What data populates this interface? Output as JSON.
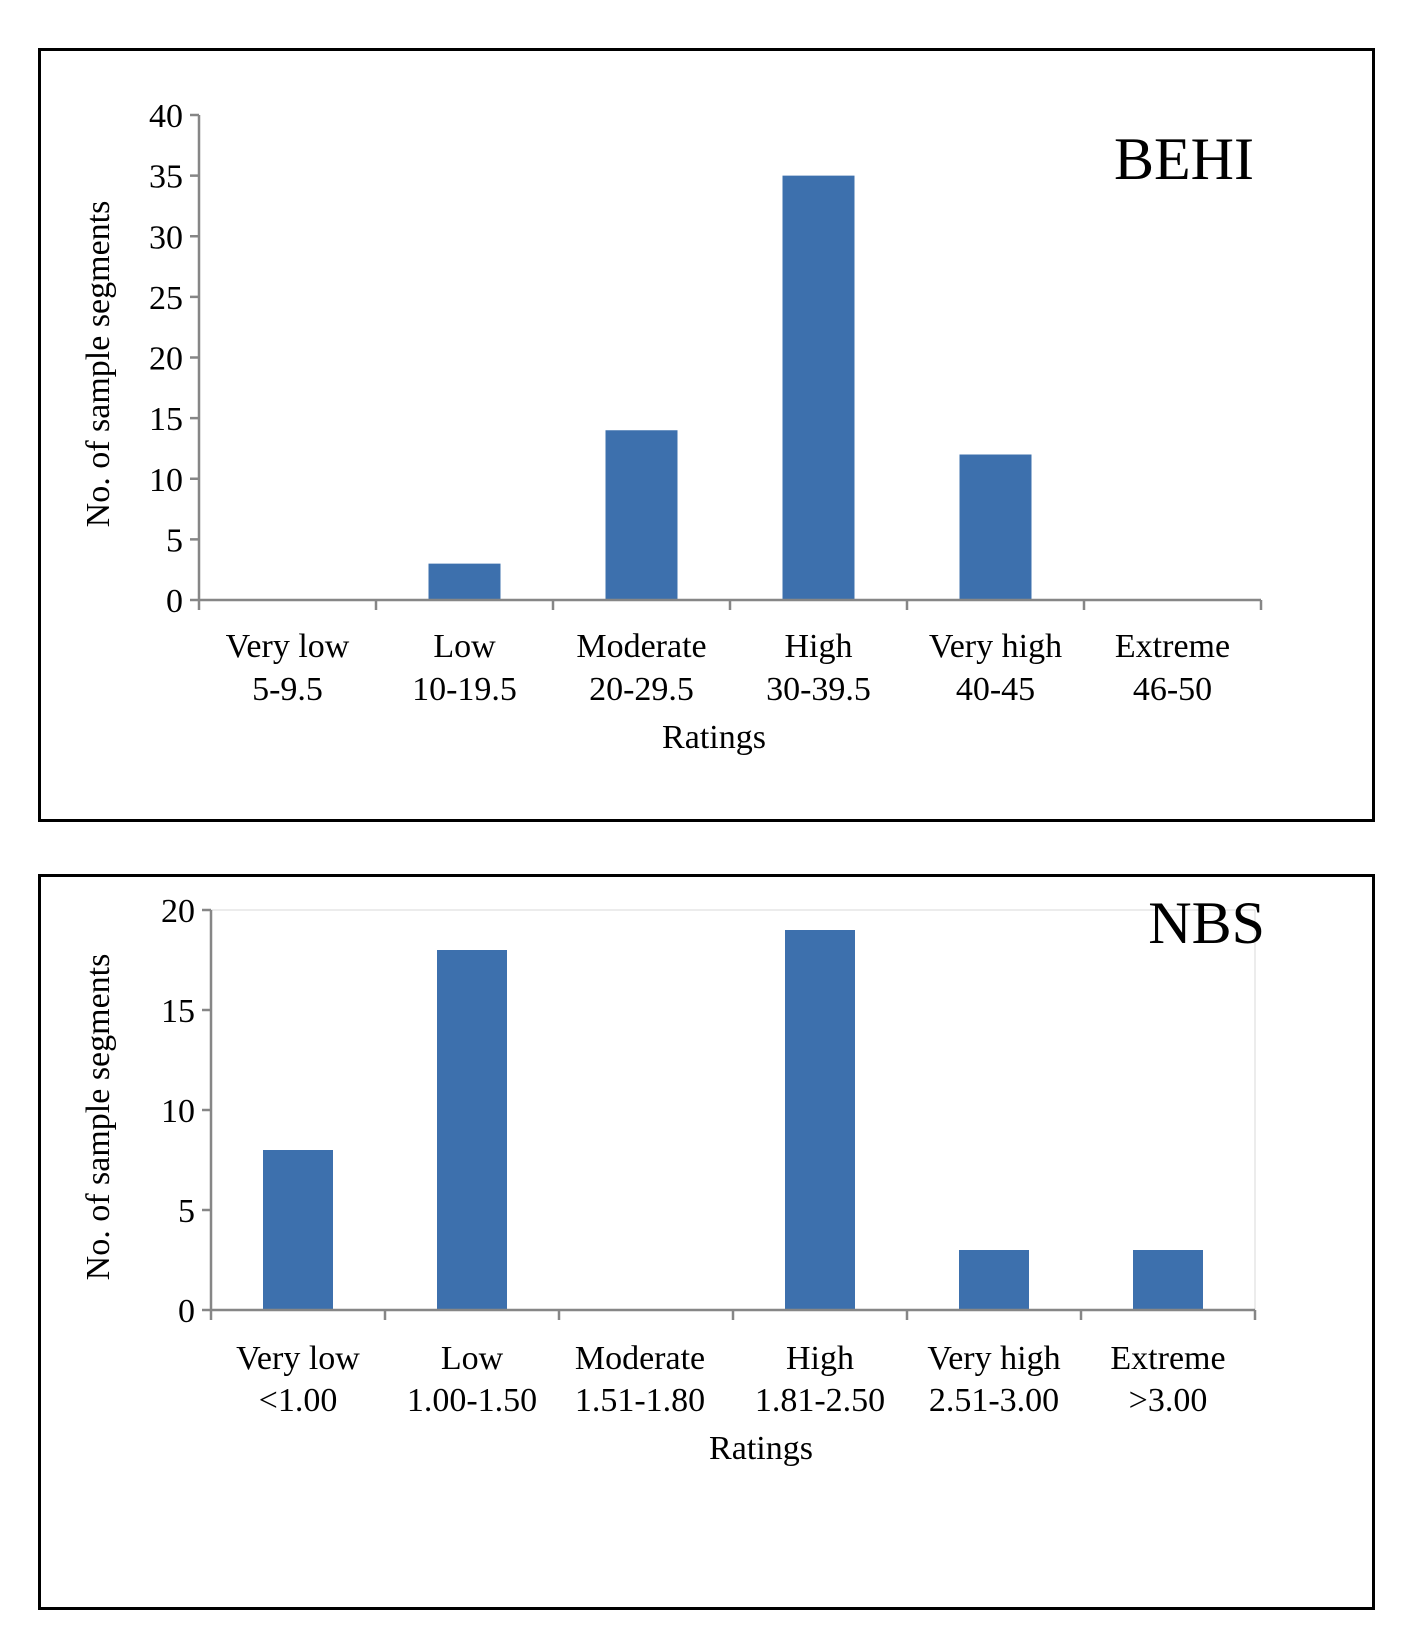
{
  "chart_data": [
    {
      "type": "bar",
      "title": "BEHI",
      "xlabel": "Ratings",
      "ylabel": "No. of sample segments",
      "categories": [
        [
          "Very low",
          "5-9.5"
        ],
        [
          "Low",
          "10-19.5"
        ],
        [
          "Moderate",
          "20-29.5"
        ],
        [
          "High",
          "30-39.5"
        ],
        [
          "Very high",
          "40-45"
        ],
        [
          "Extreme",
          "46-50"
        ]
      ],
      "values": [
        0,
        3,
        14,
        35,
        12,
        0
      ],
      "ylim": [
        0,
        40
      ],
      "yticks": [
        "0",
        "5",
        "10",
        "15",
        "20",
        "25",
        "30",
        "35",
        "40"
      ],
      "bar_color": "#3d70ad",
      "grid": false,
      "plot_border": false
    },
    {
      "type": "bar",
      "title": "NBS",
      "xlabel": "Ratings",
      "ylabel": "No. of sample segments",
      "categories": [
        [
          "Very low",
          "<1.00"
        ],
        [
          "Low",
          "1.00-1.50"
        ],
        [
          "Moderate",
          "1.51-1.80"
        ],
        [
          "High",
          "1.81-2.50"
        ],
        [
          "Very high",
          "2.51-3.00"
        ],
        [
          "Extreme",
          ">3.00"
        ]
      ],
      "values": [
        8,
        18,
        0,
        19,
        3,
        3
      ],
      "ylim": [
        0,
        20
      ],
      "yticks": [
        "0",
        "5",
        "10",
        "15",
        "20"
      ],
      "bar_color": "#3d70ad",
      "grid": false,
      "plot_border": true
    }
  ]
}
